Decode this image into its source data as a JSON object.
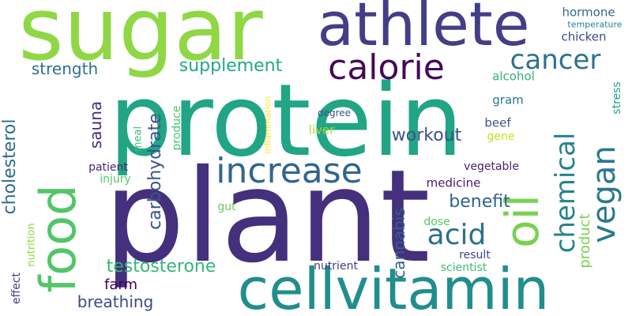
{
  "words": [
    {
      "text": "protein",
      "color": "#21a585",
      "vertical": false
    },
    {
      "text": "plant",
      "color": "#44307d",
      "vertical": false
    },
    {
      "text": "sugar",
      "color": "#8fd744",
      "vertical": false
    },
    {
      "text": "cellvitamin",
      "color": "#218e8d",
      "vertical": false
    },
    {
      "text": "athlete",
      "color": "#433e85",
      "vertical": false
    },
    {
      "text": "food",
      "color": "#53c569",
      "vertical": true
    },
    {
      "text": "increase",
      "color": "#31668e",
      "vertical": false
    },
    {
      "text": "calorie",
      "color": "#46075a",
      "vertical": false
    },
    {
      "text": "oil",
      "color": "#7ad151",
      "vertical": true
    },
    {
      "text": "vegan",
      "color": "#2a788e",
      "vertical": true
    },
    {
      "text": "cancer",
      "color": "#2c728e",
      "vertical": false
    },
    {
      "text": "chemical",
      "color": "#26828e",
      "vertical": true
    },
    {
      "text": "acid",
      "color": "#2d6f8e",
      "vertical": false
    },
    {
      "text": "carbohydrate",
      "color": "#3a548c",
      "vertical": true
    },
    {
      "text": "cholesterol",
      "color": "#2f6b8e",
      "vertical": true
    },
    {
      "text": "testosterone",
      "color": "#34b679",
      "vertical": false
    },
    {
      "text": "workout",
      "color": "#3b518b",
      "vertical": false
    },
    {
      "text": "benefit",
      "color": "#33628d",
      "vertical": false
    },
    {
      "text": "supplement",
      "color": "#22a884",
      "vertical": false
    },
    {
      "text": "strength",
      "color": "#2d708e",
      "vertical": false
    },
    {
      "text": "breathing",
      "color": "#3e4989",
      "vertical": false
    },
    {
      "text": "cannabis",
      "color": "#355f8d",
      "vertical": true
    },
    {
      "text": "sauna",
      "color": "#472c7a",
      "vertical": true
    },
    {
      "text": "product",
      "color": "#7ad151",
      "vertical": true
    },
    {
      "text": "farm",
      "color": "#440154",
      "vertical": false
    },
    {
      "text": "hormone",
      "color": "#31688e",
      "vertical": false
    },
    {
      "text": "chicken",
      "color": "#3f4889",
      "vertical": false
    },
    {
      "text": "medicine",
      "color": "#481a6c",
      "vertical": false
    },
    {
      "text": "alcohol",
      "color": "#2fb47c",
      "vertical": false
    },
    {
      "text": "gram",
      "color": "#2a788e",
      "vertical": false
    },
    {
      "text": "beef",
      "color": "#3b528b",
      "vertical": false
    },
    {
      "text": "liver",
      "color": "#a2da37",
      "vertical": false
    },
    {
      "text": "gene",
      "color": "#c8e020",
      "vertical": false
    },
    {
      "text": "vegetable",
      "color": "#481f70",
      "vertical": false
    },
    {
      "text": "patient",
      "color": "#482173",
      "vertical": false
    },
    {
      "text": "injury",
      "color": "#56c667",
      "vertical": false
    },
    {
      "text": "nutrient",
      "color": "#433e85",
      "vertical": false
    },
    {
      "text": "scientist",
      "color": "#3fbc73",
      "vertical": false
    },
    {
      "text": "result",
      "color": "#414487",
      "vertical": false
    },
    {
      "text": "dose",
      "color": "#5ec962",
      "vertical": false
    },
    {
      "text": "temperature",
      "color": "#27808e",
      "vertical": false
    },
    {
      "text": "degree",
      "color": "#3a548c",
      "vertical": false
    },
    {
      "text": "produce",
      "color": "#4ac16d",
      "vertical": true
    },
    {
      "text": "meal",
      "color": "#3fbc73",
      "vertical": true
    },
    {
      "text": "inflammation",
      "color": "#fde725",
      "vertical": true
    },
    {
      "text": "nutrition",
      "color": "#8fd744",
      "vertical": true
    },
    {
      "text": "effect",
      "color": "#424086",
      "vertical": true
    },
    {
      "text": "gut",
      "color": "#65cb5e",
      "vertical": false
    },
    {
      "text": "stress",
      "color": "#1fa188",
      "vertical": true
    }
  ]
}
